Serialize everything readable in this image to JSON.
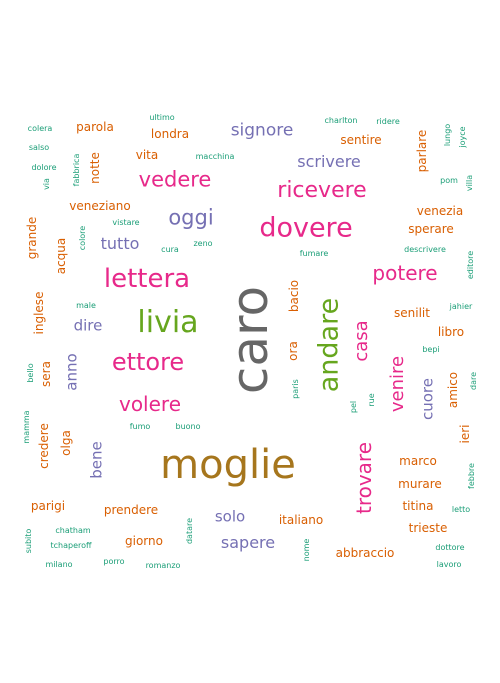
{
  "colors": {
    "teal": "#1b9e77",
    "orange": "#d95f02",
    "purple": "#7570b3",
    "magenta": "#e7298a",
    "green": "#66a61e",
    "gold": "#a6761d",
    "gray": "#666666"
  },
  "words": [
    {
      "text": "caro",
      "color": "gray",
      "vertical": true
    },
    {
      "text": "moglie",
      "color": "gold"
    },
    {
      "text": "andare",
      "color": "green",
      "vertical": true
    },
    {
      "text": "livia",
      "color": "green"
    },
    {
      "text": "lettera",
      "color": "magenta"
    },
    {
      "text": "ettore",
      "color": "magenta"
    },
    {
      "text": "dovere",
      "color": "magenta"
    },
    {
      "text": "ricevere",
      "color": "magenta"
    },
    {
      "text": "vedere",
      "color": "magenta"
    },
    {
      "text": "potere",
      "color": "magenta"
    },
    {
      "text": "volere",
      "color": "magenta"
    },
    {
      "text": "trovare",
      "color": "magenta",
      "vertical": true
    },
    {
      "text": "venire",
      "color": "magenta",
      "vertical": true
    },
    {
      "text": "casa",
      "color": "magenta",
      "vertical": true
    },
    {
      "text": "oggi",
      "color": "purple"
    },
    {
      "text": "signore",
      "color": "purple"
    },
    {
      "text": "scrivere",
      "color": "purple"
    },
    {
      "text": "tutto",
      "color": "purple"
    },
    {
      "text": "dire",
      "color": "purple"
    },
    {
      "text": "anno",
      "color": "purple",
      "vertical": true
    },
    {
      "text": "bene",
      "color": "purple",
      "vertical": true
    },
    {
      "text": "cuore",
      "color": "purple",
      "vertical": true
    },
    {
      "text": "solo",
      "color": "purple"
    },
    {
      "text": "sapere",
      "color": "purple"
    },
    {
      "text": "parola",
      "color": "orange"
    },
    {
      "text": "londra",
      "color": "orange"
    },
    {
      "text": "vita",
      "color": "orange"
    },
    {
      "text": "sentire",
      "color": "orange"
    },
    {
      "text": "parlare",
      "color": "orange",
      "vertical": true
    },
    {
      "text": "notte",
      "color": "orange",
      "vertical": true
    },
    {
      "text": "veneziano",
      "color": "orange"
    },
    {
      "text": "venezia",
      "color": "orange"
    },
    {
      "text": "sperare",
      "color": "orange"
    },
    {
      "text": "grande",
      "color": "orange",
      "vertical": true
    },
    {
      "text": "acqua",
      "color": "orange",
      "vertical": true
    },
    {
      "text": "inglese",
      "color": "orange",
      "vertical": true
    },
    {
      "text": "bacio",
      "color": "orange",
      "vertical": true
    },
    {
      "text": "senilit",
      "color": "orange"
    },
    {
      "text": "libro",
      "color": "orange"
    },
    {
      "text": "ora",
      "color": "orange",
      "vertical": true
    },
    {
      "text": "sera",
      "color": "orange",
      "vertical": true
    },
    {
      "text": "amico",
      "color": "orange",
      "vertical": true
    },
    {
      "text": "olga",
      "color": "orange",
      "vertical": true
    },
    {
      "text": "credere",
      "color": "orange",
      "vertical": true
    },
    {
      "text": "ieri",
      "color": "orange",
      "vertical": true
    },
    {
      "text": "marco",
      "color": "orange"
    },
    {
      "text": "murare",
      "color": "orange"
    },
    {
      "text": "titina",
      "color": "orange"
    },
    {
      "text": "trieste",
      "color": "orange"
    },
    {
      "text": "parigi",
      "color": "orange"
    },
    {
      "text": "prendere",
      "color": "orange"
    },
    {
      "text": "italiano",
      "color": "orange"
    },
    {
      "text": "giorno",
      "color": "orange"
    },
    {
      "text": "abbraccio",
      "color": "orange"
    },
    {
      "text": "ultimo",
      "color": "teal"
    },
    {
      "text": "charlton",
      "color": "teal"
    },
    {
      "text": "ridere",
      "color": "teal"
    },
    {
      "text": "colera",
      "color": "teal"
    },
    {
      "text": "salso",
      "color": "teal"
    },
    {
      "text": "macchina",
      "color": "teal"
    },
    {
      "text": "lungo",
      "color": "teal",
      "vertical": true
    },
    {
      "text": "joyce",
      "color": "teal",
      "vertical": true
    },
    {
      "text": "dolore",
      "color": "teal"
    },
    {
      "text": "fabbrica",
      "color": "teal",
      "vertical": true
    },
    {
      "text": "via",
      "color": "teal",
      "vertical": true
    },
    {
      "text": "pom",
      "color": "teal"
    },
    {
      "text": "villa",
      "color": "teal",
      "vertical": true
    },
    {
      "text": "vistare",
      "color": "teal"
    },
    {
      "text": "colore",
      "color": "teal",
      "vertical": true
    },
    {
      "text": "cura",
      "color": "teal"
    },
    {
      "text": "zeno",
      "color": "teal"
    },
    {
      "text": "fumare",
      "color": "teal"
    },
    {
      "text": "descrivere",
      "color": "teal"
    },
    {
      "text": "editore",
      "color": "teal",
      "vertical": true
    },
    {
      "text": "male",
      "color": "teal"
    },
    {
      "text": "jahier",
      "color": "teal"
    },
    {
      "text": "bepi",
      "color": "teal"
    },
    {
      "text": "bello",
      "color": "teal",
      "vertical": true
    },
    {
      "text": "paris",
      "color": "teal",
      "vertical": true
    },
    {
      "text": "rue",
      "color": "teal",
      "vertical": true
    },
    {
      "text": "pel",
      "color": "teal",
      "vertical": true
    },
    {
      "text": "dare",
      "color": "teal",
      "vertical": true
    },
    {
      "text": "mamma",
      "color": "teal",
      "vertical": true
    },
    {
      "text": "fumo",
      "color": "teal"
    },
    {
      "text": "buono",
      "color": "teal"
    },
    {
      "text": "febbre",
      "color": "teal",
      "vertical": true
    },
    {
      "text": "letto",
      "color": "teal"
    },
    {
      "text": "chatham",
      "color": "teal"
    },
    {
      "text": "datare",
      "color": "teal",
      "vertical": true
    },
    {
      "text": "subito",
      "color": "teal",
      "vertical": true
    },
    {
      "text": "tchaperoff",
      "color": "teal"
    },
    {
      "text": "nome",
      "color": "teal",
      "vertical": true
    },
    {
      "text": "dottore",
      "color": "teal"
    },
    {
      "text": "milano",
      "color": "teal"
    },
    {
      "text": "porro",
      "color": "teal"
    },
    {
      "text": "romanzo",
      "color": "teal"
    },
    {
      "text": "lavoro",
      "color": "teal"
    }
  ]
}
